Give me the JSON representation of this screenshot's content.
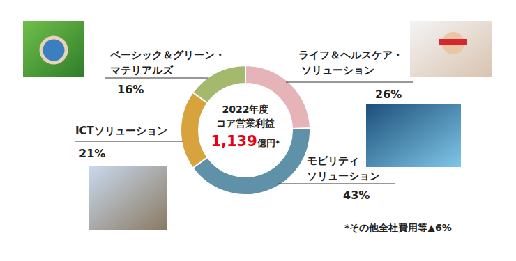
{
  "chart_data": {
    "type": "donut",
    "categories": [
      "ライフ＆ヘルスケア・\nソリューション",
      "モビリティ\nソリューション",
      "ICTソリューション",
      "ベーシック＆グリーン・\nマテリアルズ"
    ],
    "values": [
      26,
      43,
      21,
      16
    ],
    "value_labels": [
      "26%",
      "43%",
      "21%",
      "16%"
    ],
    "colors": [
      "#e5b3b8",
      "#5f91a8",
      "#d8a23c",
      "#a4b96d"
    ],
    "data_labels": true,
    "center_title": [
      "2022年度",
      "コア営業利益"
    ],
    "center_value": {
      "value": 1139,
      "label": "1,139"
    },
    "center_unit": "億円*",
    "annotation": "*その他全社費用等▲6%"
  }
}
